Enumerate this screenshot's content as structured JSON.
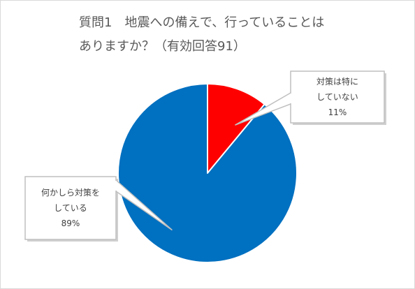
{
  "chart_data": {
    "type": "pie",
    "title": "質問1　地震への備えで、行っていることは\nありますか？（有効回答91）",
    "slices": [
      {
        "label_lines": [
          "対策は特に",
          "していない"
        ],
        "value_label": "11%",
        "value": 11,
        "color": "#ff0000"
      },
      {
        "label_lines": [
          "何かしら対策を",
          "している"
        ],
        "value_label": "89%",
        "value": 89,
        "color": "#0070c0"
      }
    ],
    "legend": "none"
  }
}
